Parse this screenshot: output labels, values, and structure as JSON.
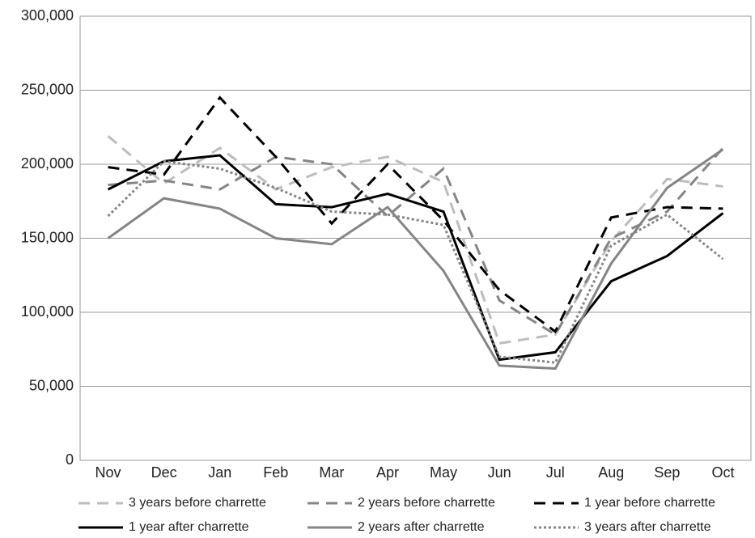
{
  "chart_data": {
    "type": "line",
    "categories": [
      "Nov",
      "Dec",
      "Jan",
      "Feb",
      "Mar",
      "Apr",
      "May",
      "Jun",
      "Jul",
      "Aug",
      "Sep",
      "Oct"
    ],
    "series": [
      {
        "name": "3 years before charrette",
        "color": "#bdbdbd",
        "style": "dashed",
        "values": [
          219000,
          187000,
          211000,
          183000,
          198000,
          205000,
          188000,
          79000,
          85000,
          148000,
          190000,
          185000
        ]
      },
      {
        "name": "2 years before charrette",
        "color": "#858585",
        "style": "dashed",
        "values": [
          186000,
          189000,
          183000,
          205000,
          200000,
          165000,
          197000,
          108000,
          85000,
          150000,
          168000,
          211000
        ]
      },
      {
        "name": "1 year before charrette",
        "color": "#000000",
        "style": "dashed",
        "values": [
          198000,
          193000,
          245000,
          205000,
          160000,
          200000,
          162000,
          115000,
          87000,
          164000,
          171000,
          170000
        ]
      },
      {
        "name": "1 year after charrette",
        "color": "#000000",
        "style": "solid",
        "values": [
          183000,
          202000,
          206000,
          173000,
          171000,
          180000,
          168000,
          68000,
          73000,
          121000,
          138000,
          167000
        ]
      },
      {
        "name": "2 years after charrette",
        "color": "#858585",
        "style": "solid",
        "values": [
          150000,
          177000,
          170000,
          150000,
          146000,
          171000,
          128000,
          64000,
          62000,
          133000,
          184000,
          210000
        ]
      },
      {
        "name": "3 years after charrette",
        "color": "#858585",
        "style": "dotted",
        "values": [
          165000,
          202000,
          197000,
          184000,
          168000,
          166000,
          159000,
          70000,
          66000,
          145000,
          166000,
          136000
        ]
      }
    ],
    "ylim": [
      0,
      300000
    ],
    "yticks": [
      0,
      {
        "value": 50000,
        "label": "50,000"
      },
      {
        "value": 100000,
        "label": "100,000"
      },
      {
        "value": 150000,
        "label": "150,000"
      },
      {
        "value": 200000,
        "label": "200,000"
      },
      {
        "value": 250000,
        "label": "250,000"
      },
      {
        "value": 300000,
        "label": "300,000"
      }
    ],
    "grid": true
  }
}
